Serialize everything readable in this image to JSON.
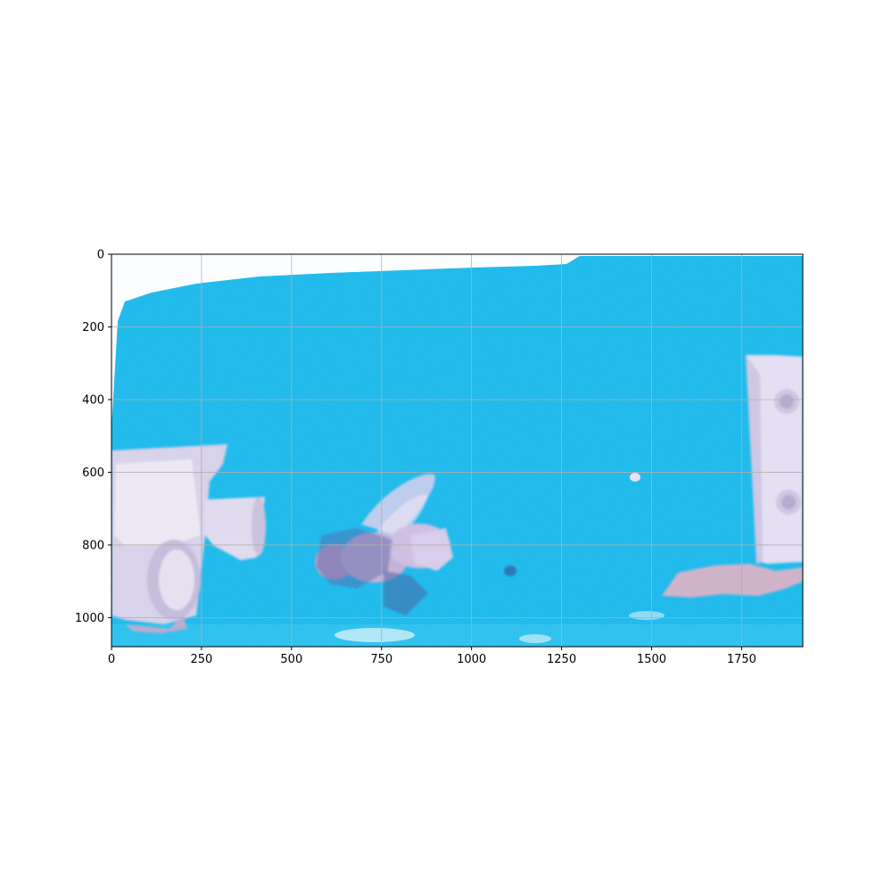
{
  "image": {
    "description_tags": [
      "bee",
      "blue-foam-background",
      "white-plastic-tube",
      "white-bracket-with-screws",
      "pink-debris"
    ],
    "background_color": "#10b6ea",
    "object_color": "#cfc6e6",
    "paper_color": "#ffffff"
  },
  "axes": {
    "x_extent": [
      0,
      1920
    ],
    "y_extent": [
      1080,
      0
    ],
    "x_ticks": [
      "0",
      "250",
      "500",
      "750",
      "1000",
      "1250",
      "1500",
      "1750"
    ],
    "y_ticks": [
      "0",
      "200",
      "400",
      "600",
      "800",
      "1000"
    ],
    "x_tick_values": [
      0,
      250,
      500,
      750,
      1000,
      1250,
      1500,
      1750
    ],
    "y_tick_values": [
      0,
      200,
      400,
      600,
      800,
      1000
    ],
    "grid": true,
    "grid_color": "#b0b0b0"
  }
}
